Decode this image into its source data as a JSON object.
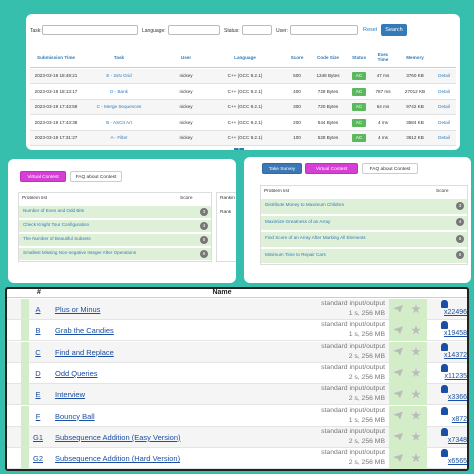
{
  "submissions": {
    "filters": {
      "task": "Task:",
      "language": "Language:",
      "status": "Status:",
      "user": "User:",
      "reset": "Reset",
      "search": "Search"
    },
    "columns": [
      "Submission Time",
      "Task",
      "User",
      "Language",
      "Score",
      "Code Size",
      "Status",
      "Exec Time",
      "Memory",
      ""
    ],
    "rows": [
      [
        "2023-03-19 18:49:21",
        "E - 2xN Grid",
        "nickey",
        "C++ (GCC 9.2.1)",
        "500",
        "1348 Bytes",
        "AC",
        "47 ms",
        "3760 KB",
        "Detail"
      ],
      [
        "2023-03-19 18:13:17",
        "D - Bank",
        "nickey",
        "C++ (GCC 9.2.1)",
        "400",
        "728 Bytes",
        "AC",
        "787 ms",
        "27012 KB",
        "Detail"
      ],
      [
        "2023-03-19 17:43:59",
        "C - Merge Sequences",
        "nickey",
        "C++ (GCC 9.2.1)",
        "300",
        "720 Bytes",
        "AC",
        "64 ms",
        "9742 KB",
        "Detail"
      ],
      [
        "2023-03-19 17:43:38",
        "B - ASCII Art",
        "nickey",
        "C++ (GCC 9.2.1)",
        "200",
        "544 Bytes",
        "AC",
        "4 ms",
        "3584 KB",
        "Detail"
      ],
      [
        "2023-03-19 17:31:27",
        "A - Filter",
        "nickey",
        "C++ (GCC 9.2.1)",
        "100",
        "528 Bytes",
        "AC",
        "4 ms",
        "3612 KB",
        "Detail"
      ]
    ],
    "page": "1"
  },
  "contest_left": {
    "buttons": [
      "Virtual Contest",
      "FAQ about Contest"
    ],
    "list_title": "Problem list",
    "score_title": "Score",
    "problems": [
      [
        "Number of Even and Odd Bits",
        "3"
      ],
      [
        "Check Knight Tour Configuration",
        "4"
      ],
      [
        "The Number of Beautiful Subsets",
        "5"
      ],
      [
        "Smallest Missing Non-negative Integer After Operations",
        "6"
      ]
    ],
    "ranking_title": "Rankin",
    "ranking_column": "Rank"
  },
  "contest_right": {
    "buttons": [
      "Take Survey",
      "Virtual Contest",
      "FAQ about Contest"
    ],
    "list_title": "Problem list",
    "score_title": "Score",
    "problems": [
      [
        "Distribute Money to Maximum Children",
        "3"
      ],
      [
        "Maximize Greatness of an Array",
        "4"
      ],
      [
        "Find Score of an Array After Marking All Elements",
        "5"
      ],
      [
        "Minimum Time to Repair Cars",
        "6"
      ]
    ]
  },
  "problemset": {
    "columns": [
      "#",
      "Name"
    ],
    "rows": [
      [
        "A",
        "Plus or Minus",
        "standard input/output",
        "1 s, 256 MB",
        "x22496"
      ],
      [
        "B",
        "Grab the Candies",
        "standard input/output",
        "1 s, 256 MB",
        "x19458"
      ],
      [
        "C",
        "Find and Replace",
        "standard input/output",
        "2 s, 256 MB",
        "x14372"
      ],
      [
        "D",
        "Odd Queries",
        "standard input/output",
        "2 s, 256 MB",
        "x11235"
      ],
      [
        "E",
        "Interview",
        "standard input/output",
        "2 s, 256 MB",
        "x3366"
      ],
      [
        "F",
        "Bouncy Ball",
        "standard input/output",
        "1 s, 256 MB",
        "x872"
      ],
      [
        "G1",
        "Subsequence Addition (Easy Version)",
        "standard input/output",
        "2 s, 256 MB",
        "x7348"
      ],
      [
        "G2",
        "Subsequence Addition (Hard Version)",
        "standard input/output",
        "2 s, 256 MB",
        "x6565"
      ]
    ]
  }
}
